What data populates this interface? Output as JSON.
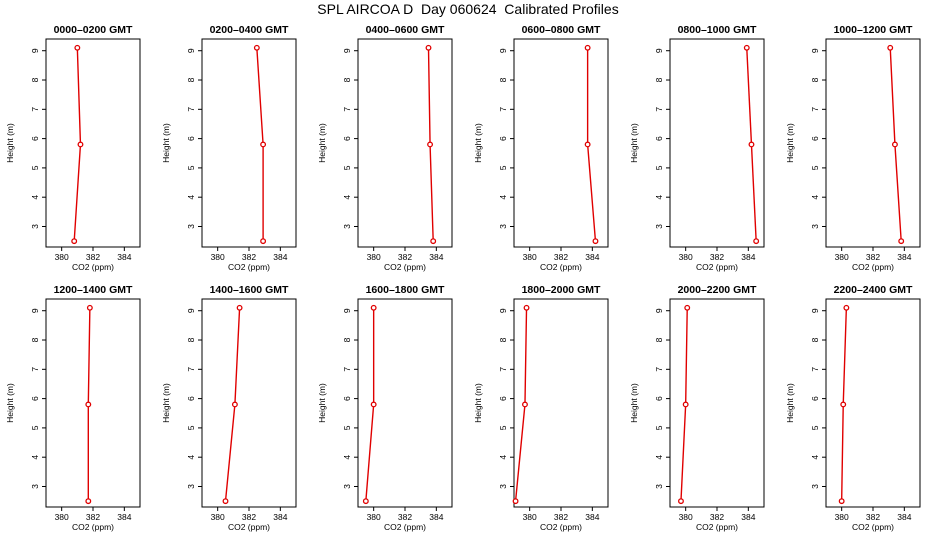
{
  "page_title": "SPL AIRCOA D  Day 060624  Calibrated Profiles",
  "colors": {
    "line": "#e00000",
    "axis": "#000000"
  },
  "chart_data": [
    {
      "type": "line",
      "title": "0000–0200 GMT",
      "xlabel": "CO2 (ppm)",
      "ylabel": "Height (m)",
      "xlim": [
        379,
        385
      ],
      "ylim": [
        2.3,
        9.4
      ],
      "xticks": [
        "380",
        "382",
        "384"
      ],
      "yticks": [
        "3",
        "4",
        "5",
        "6",
        "7",
        "8",
        "9"
      ],
      "x": [
        381.0,
        381.2,
        380.8
      ],
      "y": [
        9.1,
        5.8,
        2.5
      ]
    },
    {
      "type": "line",
      "title": "0200–0400 GMT",
      "xlabel": "CO2 (ppm)",
      "ylabel": "Height (m)",
      "xlim": [
        379,
        385
      ],
      "ylim": [
        2.3,
        9.4
      ],
      "xticks": [
        "380",
        "382",
        "384"
      ],
      "yticks": [
        "3",
        "4",
        "5",
        "6",
        "7",
        "8",
        "9"
      ],
      "x": [
        382.5,
        382.9,
        382.9
      ],
      "y": [
        9.1,
        5.8,
        2.5
      ]
    },
    {
      "type": "line",
      "title": "0400–0600 GMT",
      "xlabel": "CO2 (ppm)",
      "ylabel": "Height (m)",
      "xlim": [
        379,
        385
      ],
      "ylim": [
        2.3,
        9.4
      ],
      "xticks": [
        "380",
        "382",
        "384"
      ],
      "yticks": [
        "3",
        "4",
        "5",
        "6",
        "7",
        "8",
        "9"
      ],
      "x": [
        383.5,
        383.6,
        383.8
      ],
      "y": [
        9.1,
        5.8,
        2.5
      ]
    },
    {
      "type": "line",
      "title": "0600–0800 GMT",
      "xlabel": "CO2 (ppm)",
      "ylabel": "Height (m)",
      "xlim": [
        379,
        385
      ],
      "ylim": [
        2.3,
        9.4
      ],
      "xticks": [
        "380",
        "382",
        "384"
      ],
      "yticks": [
        "3",
        "4",
        "5",
        "6",
        "7",
        "8",
        "9"
      ],
      "x": [
        383.7,
        383.7,
        384.2
      ],
      "y": [
        9.1,
        5.8,
        2.5
      ]
    },
    {
      "type": "line",
      "title": "0800–1000 GMT",
      "xlabel": "CO2 (ppm)",
      "ylabel": "Height (m)",
      "xlim": [
        379,
        385
      ],
      "ylim": [
        2.3,
        9.4
      ],
      "xticks": [
        "380",
        "382",
        "384"
      ],
      "yticks": [
        "3",
        "4",
        "5",
        "6",
        "7",
        "8",
        "9"
      ],
      "x": [
        383.9,
        384.2,
        384.5
      ],
      "y": [
        9.1,
        5.8,
        2.5
      ]
    },
    {
      "type": "line",
      "title": "1000–1200 GMT",
      "xlabel": "CO2 (ppm)",
      "ylabel": "Height (m)",
      "xlim": [
        379,
        385
      ],
      "ylim": [
        2.3,
        9.4
      ],
      "xticks": [
        "380",
        "382",
        "384"
      ],
      "yticks": [
        "3",
        "4",
        "5",
        "6",
        "7",
        "8",
        "9"
      ],
      "x": [
        383.1,
        383.4,
        383.8
      ],
      "y": [
        9.1,
        5.8,
        2.5
      ]
    },
    {
      "type": "line",
      "title": "1200–1400 GMT",
      "xlabel": "CO2 (ppm)",
      "ylabel": "Height (m)",
      "xlim": [
        379,
        385
      ],
      "ylim": [
        2.3,
        9.4
      ],
      "xticks": [
        "380",
        "382",
        "384"
      ],
      "yticks": [
        "3",
        "4",
        "5",
        "6",
        "7",
        "8",
        "9"
      ],
      "x": [
        381.8,
        381.7,
        381.7
      ],
      "y": [
        9.1,
        5.8,
        2.5
      ]
    },
    {
      "type": "line",
      "title": "1400–1600 GMT",
      "xlabel": "CO2 (ppm)",
      "ylabel": "Height (m)",
      "xlim": [
        379,
        385
      ],
      "ylim": [
        2.3,
        9.4
      ],
      "xticks": [
        "380",
        "382",
        "384"
      ],
      "yticks": [
        "3",
        "4",
        "5",
        "6",
        "7",
        "8",
        "9"
      ],
      "x": [
        381.4,
        381.1,
        380.5
      ],
      "y": [
        9.1,
        5.8,
        2.5
      ]
    },
    {
      "type": "line",
      "title": "1600–1800 GMT",
      "xlabel": "CO2 (ppm)",
      "ylabel": "Height (m)",
      "xlim": [
        379,
        385
      ],
      "ylim": [
        2.3,
        9.4
      ],
      "xticks": [
        "380",
        "382",
        "384"
      ],
      "yticks": [
        "3",
        "4",
        "5",
        "6",
        "7",
        "8",
        "9"
      ],
      "x": [
        380.0,
        380.0,
        379.5
      ],
      "y": [
        9.1,
        5.8,
        2.5
      ]
    },
    {
      "type": "line",
      "title": "1800–2000 GMT",
      "xlabel": "CO2 (ppm)",
      "ylabel": "Height (m)",
      "xlim": [
        379,
        385
      ],
      "ylim": [
        2.3,
        9.4
      ],
      "xticks": [
        "380",
        "382",
        "384"
      ],
      "yticks": [
        "3",
        "4",
        "5",
        "6",
        "7",
        "8",
        "9"
      ],
      "x": [
        379.8,
        379.7,
        379.1
      ],
      "y": [
        9.1,
        5.8,
        2.5
      ]
    },
    {
      "type": "line",
      "title": "2000–2200 GMT",
      "xlabel": "CO2 (ppm)",
      "ylabel": "Height (m)",
      "xlim": [
        379,
        385
      ],
      "ylim": [
        2.3,
        9.4
      ],
      "xticks": [
        "380",
        "382",
        "384"
      ],
      "yticks": [
        "3",
        "4",
        "5",
        "6",
        "7",
        "8",
        "9"
      ],
      "x": [
        380.1,
        380.0,
        379.7
      ],
      "y": [
        9.1,
        5.8,
        2.5
      ]
    },
    {
      "type": "line",
      "title": "2200–2400 GMT",
      "xlabel": "CO2 (ppm)",
      "ylabel": "Height (m)",
      "xlim": [
        379,
        385
      ],
      "ylim": [
        2.3,
        9.4
      ],
      "xticks": [
        "380",
        "382",
        "384"
      ],
      "yticks": [
        "3",
        "4",
        "5",
        "6",
        "7",
        "8",
        "9"
      ],
      "x": [
        380.3,
        380.1,
        380.0
      ],
      "y": [
        9.1,
        5.8,
        2.5
      ]
    }
  ]
}
